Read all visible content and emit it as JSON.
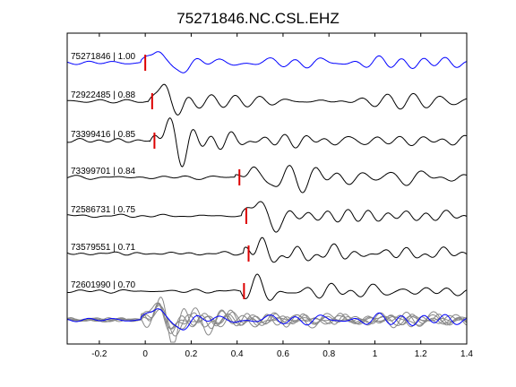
{
  "chart_data": {
    "type": "line",
    "title": "75271846.NC.CSL.EHZ",
    "xlabel": "",
    "ylabel": "",
    "xlim": [
      -0.34,
      1.4
    ],
    "x_ticks": [
      -0.2,
      0,
      0.2,
      0.4,
      0.6,
      0.8,
      1,
      1.2,
      1.4
    ],
    "x_tick_labels": [
      "-0.2",
      "0",
      "0.2",
      "0.4",
      "0.6",
      "0.8",
      "1",
      "1.2",
      "1.4"
    ],
    "grid": false,
    "legend": "none",
    "colors": {
      "reference": "#0000ff",
      "trace": "#000000",
      "pick": "#dd0000",
      "stack": "#888888",
      "axes": "#000000"
    },
    "traces": [
      {
        "label": "75271846 | 1.00",
        "pick_time": 0.0,
        "color": "#0000ff",
        "seed": 1,
        "amp": 1.0
      },
      {
        "label": "72922485 | 0.88",
        "pick_time": 0.03,
        "color": "#000000",
        "seed": 2,
        "amp": 1.15
      },
      {
        "label": "73399416 | 0.85",
        "pick_time": 0.04,
        "color": "#000000",
        "seed": 3,
        "amp": 1.15
      },
      {
        "label": "73399701 | 0.84",
        "pick_time": 0.41,
        "color": "#000000",
        "seed": 4,
        "amp": 1.3
      },
      {
        "label": "72586731 | 0.75",
        "pick_time": 0.44,
        "color": "#000000",
        "seed": 5,
        "amp": 1.25
      },
      {
        "label": "73579551 | 0.71",
        "pick_time": 0.45,
        "color": "#000000",
        "seed": 6,
        "amp": 1.1
      },
      {
        "label": "72601990 | 0.70",
        "pick_time": 0.43,
        "color": "#000000",
        "seed": 7,
        "amp": 1.1
      }
    ]
  }
}
